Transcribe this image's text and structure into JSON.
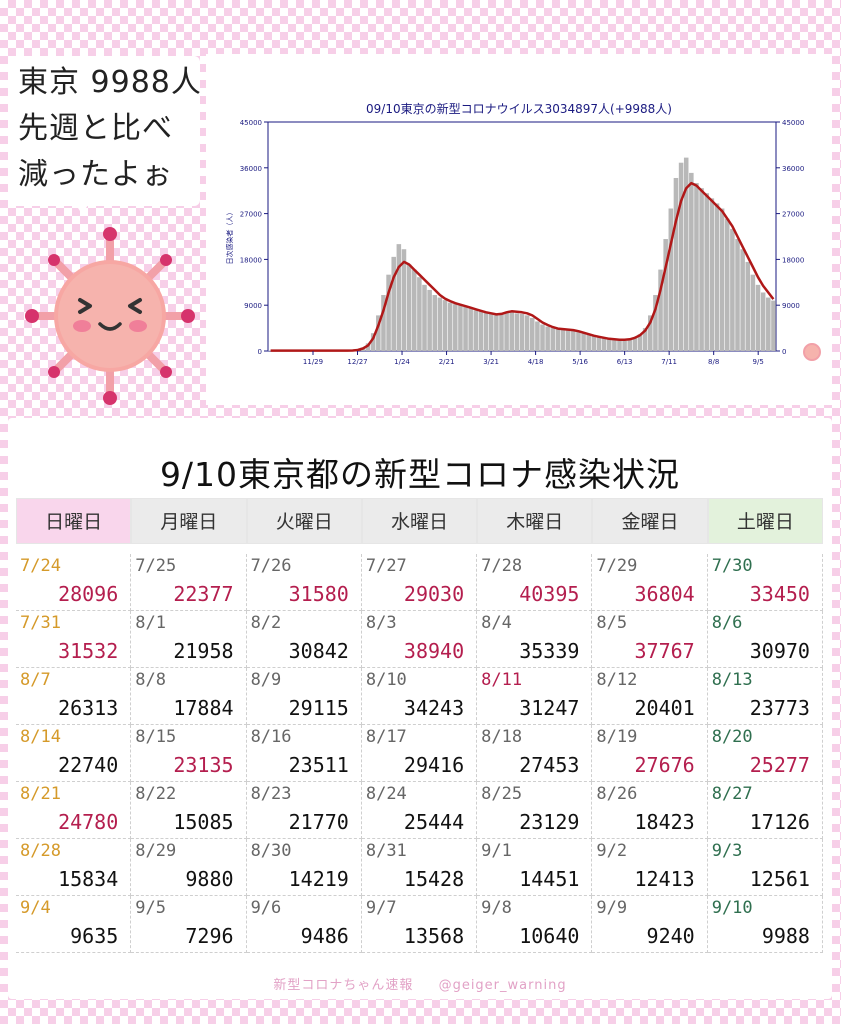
{
  "bubble": {
    "line1": "東京 9988人",
    "line2": "先週と比べ",
    "line3": "減ったよぉ"
  },
  "chart_data": {
    "type": "bar",
    "title": "09/10東京の新型コロナウイルス3034897人(+9988人)",
    "ylabel": "日次感染者（人）",
    "x_ticks": [
      "11/29",
      "12/27",
      "1/24",
      "2/21",
      "3/21",
      "4/18",
      "5/16",
      "6/13",
      "7/11",
      "8/8",
      "9/5"
    ],
    "y_ticks": [
      0,
      9000,
      18000,
      27000,
      36000,
      45000
    ],
    "ylim": [
      0,
      45000
    ],
    "grid": false,
    "series": [
      {
        "kind": "bar",
        "color": "#b8b8b8",
        "values": [
          100,
          100,
          100,
          100,
          100,
          100,
          100,
          100,
          100,
          100,
          100,
          100,
          100,
          100,
          100,
          100,
          150,
          300,
          700,
          1500,
          3500,
          7000,
          11000,
          15000,
          18500,
          21000,
          20000,
          17000,
          16000,
          14500,
          13000,
          12000,
          11000,
          10500,
          10000,
          9500,
          9200,
          9000,
          8800,
          8500,
          8000,
          7800,
          7500,
          7300,
          7000,
          7200,
          7500,
          7600,
          7400,
          7300,
          7000,
          6500,
          5800,
          5200,
          4800,
          4500,
          4300,
          4200,
          4100,
          4000,
          3800,
          3500,
          3200,
          3000,
          2700,
          2500,
          2300,
          2200,
          2100,
          2000,
          2200,
          2600,
          3300,
          4500,
          7000,
          11000,
          16000,
          22000,
          28000,
          34000,
          37000,
          38000,
          35000,
          33000,
          32000,
          31000,
          30000,
          29000,
          28000,
          26000,
          24000,
          22000,
          20000,
          17500,
          15000,
          13000,
          11500,
          10500,
          9900
        ]
      },
      {
        "kind": "line",
        "color": "#b01818",
        "values": [
          80,
          80,
          80,
          80,
          80,
          80,
          80,
          80,
          80,
          80,
          80,
          80,
          80,
          80,
          80,
          80,
          100,
          200,
          500,
          1100,
          2500,
          5000,
          8000,
          11500,
          14500,
          16500,
          17500,
          17000,
          16000,
          15000,
          14000,
          13000,
          12000,
          11000,
          10300,
          9800,
          9400,
          9100,
          8800,
          8500,
          8200,
          7900,
          7600,
          7400,
          7200,
          7300,
          7600,
          7800,
          7700,
          7600,
          7400,
          7000,
          6300,
          5600,
          5100,
          4700,
          4400,
          4300,
          4200,
          4100,
          3900,
          3600,
          3300,
          3000,
          2800,
          2600,
          2400,
          2300,
          2200,
          2200,
          2300,
          2600,
          3100,
          4000,
          5600,
          8200,
          12000,
          16500,
          21000,
          25500,
          29500,
          32000,
          33000,
          32500,
          31500,
          30500,
          29500,
          28500,
          27500,
          26000,
          24500,
          22500,
          20500,
          18500,
          16500,
          14500,
          12800,
          11500,
          10200
        ]
      }
    ]
  },
  "calendar": {
    "title": "9/10東京都の新型コロナ感染状況",
    "headers": [
      "日曜日",
      "月曜日",
      "火曜日",
      "水曜日",
      "木曜日",
      "金曜日",
      "土曜日"
    ],
    "rows": [
      [
        [
          "7/24",
          "28096",
          "sun",
          "red"
        ],
        [
          "7/25",
          "22377",
          "",
          "red"
        ],
        [
          "7/26",
          "31580",
          "",
          "red"
        ],
        [
          "7/27",
          "29030",
          "",
          "red"
        ],
        [
          "7/28",
          "40395",
          "",
          "red"
        ],
        [
          "7/29",
          "36804",
          "",
          "red"
        ],
        [
          "7/30",
          "33450",
          "sat",
          "red"
        ]
      ],
      [
        [
          "7/31",
          "31532",
          "sun",
          "red"
        ],
        [
          "8/1",
          "21958",
          "",
          ""
        ],
        [
          "8/2",
          "30842",
          "",
          ""
        ],
        [
          "8/3",
          "38940",
          "",
          "red"
        ],
        [
          "8/4",
          "35339",
          "",
          ""
        ],
        [
          "8/5",
          "37767",
          "",
          "red"
        ],
        [
          "8/6",
          "30970",
          "sat",
          ""
        ]
      ],
      [
        [
          "8/7",
          "26313",
          "sun",
          ""
        ],
        [
          "8/8",
          "17884",
          "",
          ""
        ],
        [
          "8/9",
          "29115",
          "",
          ""
        ],
        [
          "8/10",
          "34243",
          "",
          ""
        ],
        [
          "8/11",
          "31247",
          "red",
          ""
        ],
        [
          "8/12",
          "20401",
          "",
          ""
        ],
        [
          "8/13",
          "23773",
          "sat",
          ""
        ]
      ],
      [
        [
          "8/14",
          "22740",
          "sun",
          ""
        ],
        [
          "8/15",
          "23135",
          "",
          "red"
        ],
        [
          "8/16",
          "23511",
          "",
          ""
        ],
        [
          "8/17",
          "29416",
          "",
          ""
        ],
        [
          "8/18",
          "27453",
          "",
          ""
        ],
        [
          "8/19",
          "27676",
          "",
          "red"
        ],
        [
          "8/20",
          "25277",
          "sat",
          "red"
        ]
      ],
      [
        [
          "8/21",
          "24780",
          "sun",
          "red"
        ],
        [
          "8/22",
          "15085",
          "",
          ""
        ],
        [
          "8/23",
          "21770",
          "",
          ""
        ],
        [
          "8/24",
          "25444",
          "",
          ""
        ],
        [
          "8/25",
          "23129",
          "",
          ""
        ],
        [
          "8/26",
          "18423",
          "",
          ""
        ],
        [
          "8/27",
          "17126",
          "sat",
          ""
        ]
      ],
      [
        [
          "8/28",
          "15834",
          "sun",
          ""
        ],
        [
          "8/29",
          "9880",
          "",
          ""
        ],
        [
          "8/30",
          "14219",
          "",
          ""
        ],
        [
          "8/31",
          "15428",
          "",
          ""
        ],
        [
          "9/1",
          "14451",
          "",
          ""
        ],
        [
          "9/2",
          "12413",
          "",
          ""
        ],
        [
          "9/3",
          "12561",
          "sat",
          ""
        ]
      ],
      [
        [
          "9/4",
          "9635",
          "sun",
          ""
        ],
        [
          "9/5",
          "7296",
          "",
          ""
        ],
        [
          "9/6",
          "9486",
          "",
          ""
        ],
        [
          "9/7",
          "13568",
          "",
          ""
        ],
        [
          "9/8",
          "10640",
          "",
          ""
        ],
        [
          "9/9",
          "9240",
          "",
          ""
        ],
        [
          "9/10",
          "9988",
          "sat",
          ""
        ]
      ]
    ]
  },
  "credit": {
    "left": "新型コロナちゃん速報",
    "right": "@geiger_warning"
  },
  "colors": {
    "accent": "#b41e4e",
    "bar": "#b8b8b8",
    "line": "#b01818",
    "axis": "#1a1a80",
    "pink": "#f7cfe8"
  }
}
